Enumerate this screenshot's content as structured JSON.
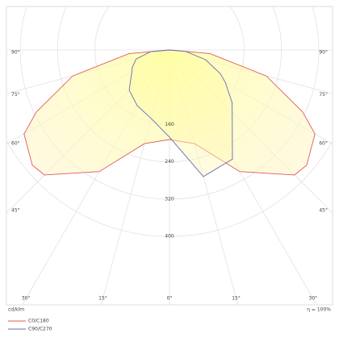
{
  "chart_data": {
    "type": "polar",
    "angles": [
      -90,
      -85,
      -75,
      -65,
      -60,
      -50,
      -45,
      -30,
      -15,
      0,
      15,
      30,
      45,
      50,
      60,
      65,
      75,
      85,
      90
    ],
    "series": [
      {
        "name": "C0/C180",
        "color": "#e05a5a",
        "values": [
          0,
          87,
          215,
          315,
          360,
          384,
          379,
          301,
          208,
          192,
          208,
          301,
          379,
          384,
          360,
          315,
          215,
          87,
          0
        ]
      },
      {
        "name": "C90/C270",
        "color": "#6a6ab8",
        "values": [
          0,
          40,
          74,
          88,
          93,
          110,
          122,
          138,
          152,
          187,
          281,
          270,
          190,
          175,
          138,
          120,
          80,
          35,
          0
        ]
      }
    ],
    "rticks": [
      160,
      240,
      320,
      400
    ],
    "angle_ticks": [
      {
        "value": -90,
        "label": "90°"
      },
      {
        "value": -75,
        "label": "75°"
      },
      {
        "value": -60,
        "label": "60°"
      },
      {
        "value": -45,
        "label": "45°"
      },
      {
        "value": -30,
        "label": "30°"
      },
      {
        "value": -15,
        "label": "15°"
      },
      {
        "value": 0,
        "label": "0°"
      },
      {
        "value": 15,
        "label": "15°"
      },
      {
        "value": 30,
        "label": "30°"
      },
      {
        "value": 45,
        "label": "45°"
      },
      {
        "value": 60,
        "label": "60°"
      },
      {
        "value": 75,
        "label": "75°"
      },
      {
        "value": 90,
        "label": "90°"
      }
    ],
    "unit_label": "cd/klm",
    "efficiency_label": "η = 100%"
  }
}
